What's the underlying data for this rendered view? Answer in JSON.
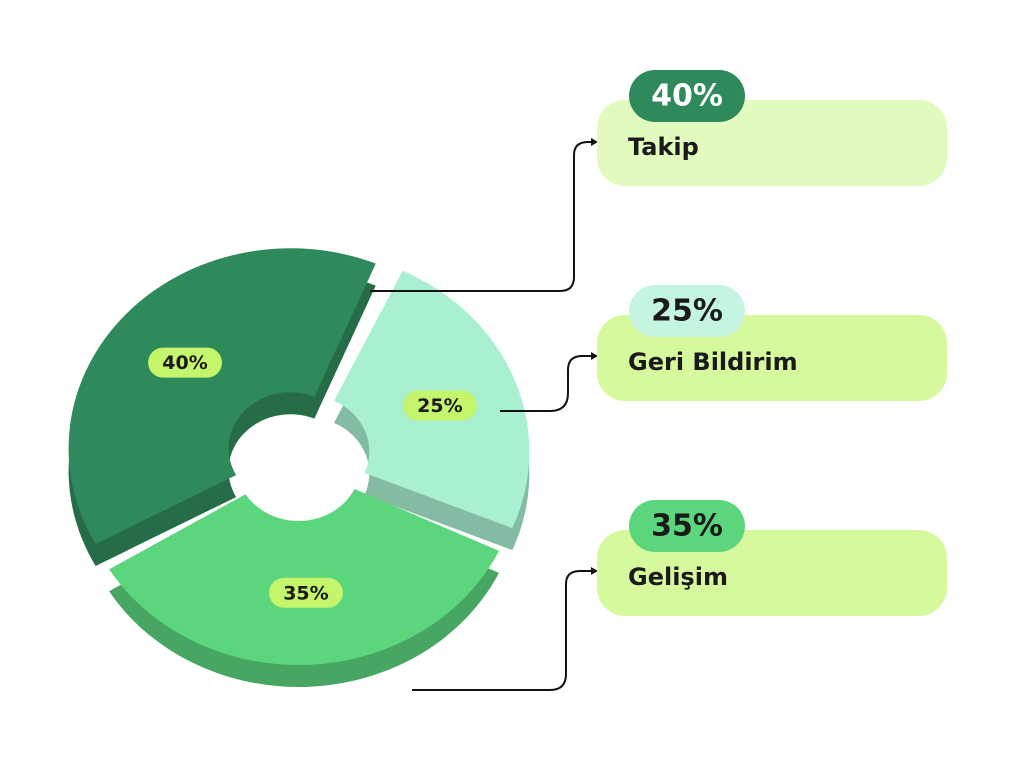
{
  "chart_data": {
    "type": "donut",
    "categories": [
      "Takip",
      "Geri Bildirim",
      "Gelişim"
    ],
    "values": [
      40,
      25,
      35
    ],
    "value_labels": [
      "40%",
      "25%",
      "35%"
    ],
    "colors": [
      "#2f8a5b",
      "#a9f0d1",
      "#5bd67d"
    ]
  }
}
